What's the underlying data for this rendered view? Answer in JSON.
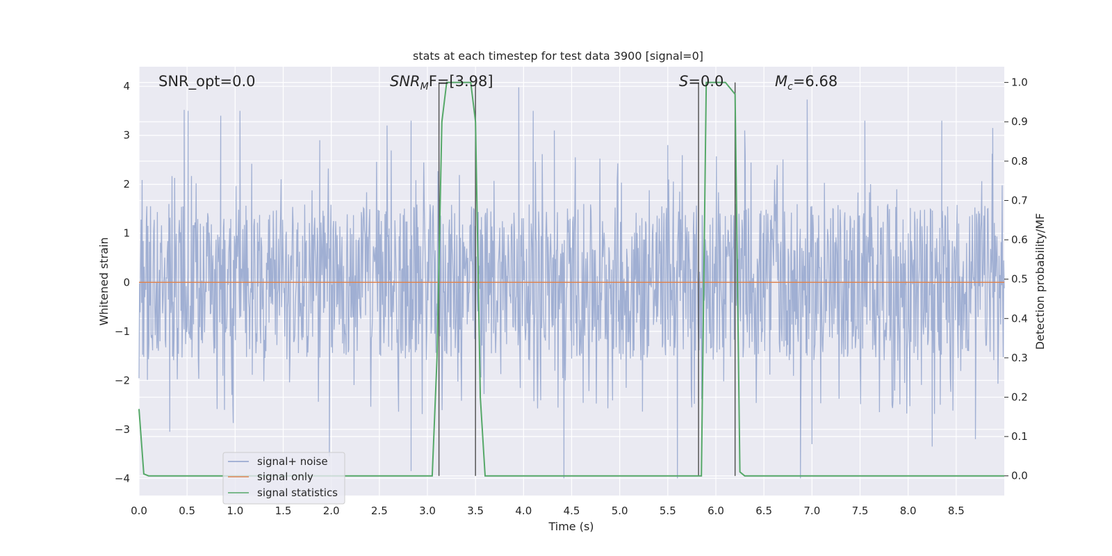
{
  "chart_data": {
    "type": "line",
    "title": "stats at each timestep for test data 3900 [signal=0]",
    "xlabel": "Time (s)",
    "ylabel": "Whitened strain",
    "y2label": "Detection probability/MF",
    "xlim": [
      0.0,
      9.0
    ],
    "ylim": [
      -4.35,
      4.4
    ],
    "y2lim": [
      -0.05,
      1.04
    ],
    "xticks": [
      "0.0",
      "0.5",
      "1.0",
      "1.5",
      "2.0",
      "2.5",
      "3.0",
      "3.5",
      "4.0",
      "4.5",
      "5.0",
      "5.5",
      "6.0",
      "6.5",
      "7.0",
      "7.5",
      "8.0",
      "8.5"
    ],
    "yticks": [
      "−4",
      "−3",
      "−2",
      "−1",
      "0",
      "1",
      "2",
      "3",
      "4"
    ],
    "y2ticks": [
      "0.0",
      "0.1",
      "0.2",
      "0.3",
      "0.4",
      "0.5",
      "0.6",
      "0.7",
      "0.8",
      "0.9",
      "1.0"
    ],
    "grid": true,
    "legend_position": "lower-left",
    "annotations": {
      "snr_opt": "SNR_opt=0.0",
      "snr_mf_base": "SNR",
      "snr_mf_sub": "M",
      "snr_mf_rest": "F=[3.98]",
      "s_var": "S",
      "s_rest": "=0.0",
      "mc_var": "M",
      "mc_sub": "c",
      "mc_rest": "=6.68"
    },
    "series": [
      {
        "name": "signal+ noise",
        "color": "#8da0cb",
        "description_level": "noise-like, mostly within ±1.6, peaks near ±3.5",
        "spikes_up": [
          [
            0.47,
            3.52
          ],
          [
            0.51,
            3.5
          ],
          [
            0.85,
            3.4
          ],
          [
            1.05,
            3.5
          ],
          [
            1.88,
            2.9
          ],
          [
            2.58,
            3.2
          ],
          [
            2.83,
            3.3
          ],
          [
            3.95,
            3.98
          ],
          [
            4.1,
            3.5
          ],
          [
            4.32,
            3.1
          ],
          [
            5.5,
            2.8
          ],
          [
            6.3,
            3.1
          ],
          [
            6.95,
            3.73
          ],
          [
            7.55,
            3.3
          ],
          [
            8.35,
            3.3
          ],
          [
            8.88,
            3.15
          ]
        ],
        "spikes_down": [
          [
            0.32,
            -3.05
          ],
          [
            0.98,
            -2.87
          ],
          [
            1.98,
            -3.55
          ],
          [
            2.83,
            -3.85
          ],
          [
            3.5,
            -2.1
          ],
          [
            4.42,
            -4.0
          ],
          [
            5.6,
            -4.0
          ],
          [
            6.88,
            -4.0
          ],
          [
            7.0,
            -3.3
          ],
          [
            8.25,
            -3.35
          ],
          [
            8.7,
            -3.2
          ]
        ]
      },
      {
        "name": "signal only",
        "color": "#dd8452",
        "x": [
          0.0,
          9.0
        ],
        "y": [
          0.0,
          0.0
        ]
      },
      {
        "name": "signal statistics",
        "color": "#55a868",
        "x": [
          0.0,
          0.05,
          0.1,
          3.05,
          3.1,
          3.15,
          3.2,
          3.3,
          3.45,
          3.5,
          3.55,
          3.6,
          5.85,
          5.9,
          6.0,
          6.1,
          6.2,
          6.25,
          6.3,
          9.0
        ],
        "y": [
          0.17,
          0.005,
          0.0,
          0.0,
          0.3,
          0.9,
          1.0,
          1.0,
          1.0,
          0.9,
          0.2,
          0.0,
          0.0,
          1.0,
          1.0,
          1.0,
          0.97,
          0.01,
          0.0,
          0.0
        ]
      }
    ],
    "vlines": [
      3.12,
      3.5,
      5.82,
      6.2
    ],
    "vline_color": "#555555"
  }
}
